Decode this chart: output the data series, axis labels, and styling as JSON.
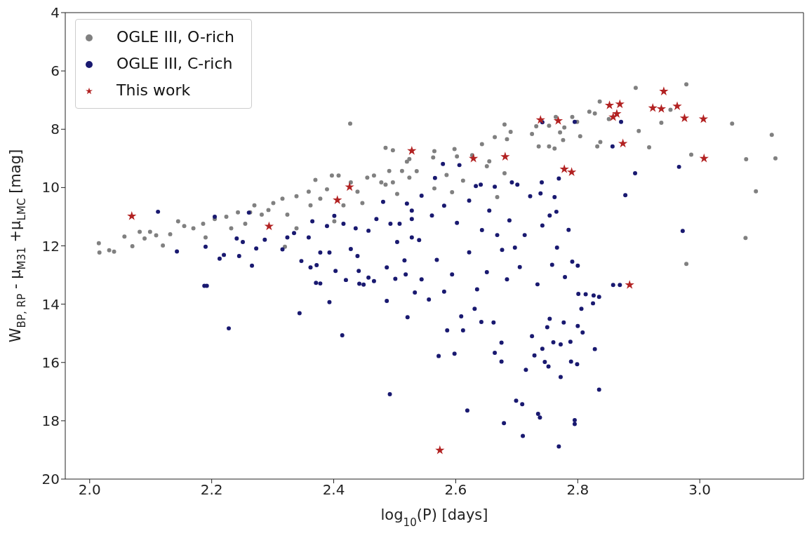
{
  "chart_data": {
    "type": "scatter",
    "xlabel": "log$_{10}$(P) [days]",
    "ylabel": "W$_{BP, RP}$ - μ$_{M31}$ +μ$_{LMC}$ [mag]",
    "xlim": [
      1.96,
      3.17
    ],
    "xticks": [
      {
        "value": 2.0,
        "label": "2.0"
      },
      {
        "value": 2.2,
        "label": "2.2"
      },
      {
        "value": 2.4,
        "label": "2.4"
      },
      {
        "value": 2.6,
        "label": "2.6"
      },
      {
        "value": 2.8,
        "label": "2.8"
      },
      {
        "value": 3.0,
        "label": "3.0"
      }
    ],
    "ylim": [
      20,
      4
    ],
    "yticks": [
      4,
      6,
      8,
      10,
      12,
      14,
      16,
      18,
      20
    ],
    "legend": "top left",
    "series": [
      {
        "name": "OGLE III, O-rich",
        "color": "#808080",
        "marker": "circle",
        "x": [
          2.015,
          2.016,
          2.032,
          2.04,
          2.057,
          2.07,
          2.082,
          2.09,
          2.099,
          2.109,
          2.12,
          2.132,
          2.145,
          2.155,
          2.17,
          2.186,
          2.19,
          2.205,
          2.224,
          2.232,
          2.243,
          2.255,
          2.263,
          2.27,
          2.282,
          2.293,
          2.301,
          2.316,
          2.324,
          2.339,
          2.359,
          2.362,
          2.37,
          2.378,
          2.389,
          2.397,
          2.408,
          2.416,
          2.428,
          2.439,
          2.447,
          2.455,
          2.466,
          2.478,
          2.485,
          2.491,
          2.497,
          2.504,
          2.512,
          2.52,
          2.524,
          2.427,
          2.485,
          2.497,
          2.401,
          2.339,
          2.32,
          2.524,
          2.536,
          2.563,
          2.565,
          2.598,
          2.602,
          2.585,
          2.565,
          2.594,
          2.612,
          2.627,
          2.643,
          2.651,
          2.655,
          2.664,
          2.668,
          2.68,
          2.68,
          2.684,
          2.69,
          2.725,
          2.732,
          2.736,
          2.753,
          2.753,
          2.762,
          2.764,
          2.771,
          2.776,
          2.778,
          2.791,
          2.799,
          2.804,
          2.819,
          2.828,
          2.832,
          2.836,
          2.837,
          2.851,
          2.895,
          2.9,
          2.917,
          2.937,
          2.952,
          2.978,
          2.986,
          2.978,
          3.053,
          3.076,
          3.075,
          3.092,
          3.118,
          3.124
        ],
        "values": [
          11.91,
          12.23,
          12.15,
          12.2,
          11.68,
          12.01,
          11.52,
          11.75,
          11.52,
          11.64,
          11.99,
          11.6,
          11.16,
          11.32,
          11.4,
          11.24,
          11.71,
          11.08,
          11.0,
          11.4,
          10.85,
          11.24,
          10.85,
          10.61,
          10.93,
          10.77,
          10.53,
          10.38,
          10.93,
          10.3,
          10.14,
          10.61,
          9.74,
          10.38,
          10.06,
          9.59,
          9.59,
          10.61,
          9.82,
          10.14,
          10.53,
          9.66,
          9.59,
          9.82,
          9.9,
          9.43,
          9.82,
          10.22,
          9.43,
          9.11,
          9.66,
          7.81,
          8.64,
          8.72,
          11.16,
          11.4,
          12.03,
          9.02,
          9.44,
          8.97,
          8.75,
          8.68,
          8.93,
          9.57,
          10.03,
          10.16,
          9.76,
          8.89,
          8.51,
          9.27,
          9.1,
          8.27,
          10.33,
          7.84,
          9.51,
          8.34,
          8.09,
          8.16,
          7.9,
          8.59,
          7.88,
          8.59,
          8.66,
          7.58,
          8.11,
          8.37,
          7.94,
          7.58,
          7.75,
          8.24,
          7.4,
          7.46,
          8.59,
          7.05,
          8.44,
          7.65,
          6.58,
          8.06,
          8.62,
          7.78,
          7.33,
          6.46,
          8.87,
          12.62,
          7.81,
          9.03,
          11.73,
          10.13,
          8.19,
          9.0
        ]
      },
      {
        "name": "OGLE III, C-rich",
        "color": "#191970",
        "marker": "circle",
        "x": [
          2.112,
          2.143,
          2.192,
          2.19,
          2.205,
          2.213,
          2.22,
          2.241,
          2.245,
          2.251,
          2.261,
          2.266,
          2.273,
          2.287,
          2.316,
          2.324,
          2.335,
          2.347,
          2.359,
          2.362,
          2.365,
          2.372,
          2.378,
          2.378,
          2.389,
          2.393,
          2.403,
          2.401,
          2.416,
          2.42,
          2.428,
          2.436,
          2.439,
          2.441,
          2.449,
          2.457,
          2.457,
          2.466,
          2.47,
          2.481,
          2.487,
          2.493,
          2.501,
          2.504,
          2.508,
          2.516,
          2.518,
          2.52,
          2.528,
          2.528,
          2.188,
          2.228,
          2.344,
          2.393,
          2.414,
          2.371,
          2.442,
          2.487,
          2.492,
          2.521,
          2.533,
          2.556,
          2.572,
          2.586,
          2.598,
          2.609,
          2.612,
          2.619,
          2.631,
          2.642,
          2.662,
          2.664,
          2.675,
          2.675,
          2.679,
          2.699,
          2.709,
          2.71,
          2.715,
          2.725,
          2.729,
          2.735,
          2.738,
          2.746,
          2.752,
          2.742,
          2.75,
          2.76,
          2.769,
          2.772,
          2.772,
          2.788,
          2.789,
          2.795,
          2.795,
          2.799,
          2.8,
          2.808,
          2.801,
          2.806,
          2.825,
          2.828,
          2.835,
          2.835,
          2.858,
          2.777,
          2.754,
          2.579,
          2.606,
          2.566,
          2.633,
          2.641,
          2.664,
          2.692,
          2.701,
          2.741,
          2.742,
          2.795,
          2.871,
          2.857,
          2.769,
          2.739,
          2.722,
          2.762,
          2.765,
          2.754,
          2.785,
          2.791,
          2.8,
          2.894,
          2.878,
          2.966,
          2.972,
          2.869,
          2.813,
          2.826,
          2.779,
          2.766,
          2.742,
          2.713,
          2.688,
          2.676,
          2.655,
          2.643,
          2.622,
          2.602,
          2.581,
          2.561,
          2.544,
          2.528,
          2.54,
          2.569,
          2.594,
          2.622,
          2.651,
          2.684,
          2.705,
          2.734,
          2.758,
          2.635,
          2.581,
          2.544,
          2.668,
          2.697
        ],
        "values": [
          10.83,
          12.19,
          13.37,
          12.03,
          11.0,
          12.44,
          12.31,
          11.75,
          12.35,
          11.87,
          10.86,
          12.68,
          12.09,
          11.79,
          12.12,
          11.71,
          11.56,
          12.52,
          11.71,
          12.74,
          11.16,
          12.66,
          12.23,
          13.29,
          11.32,
          12.23,
          12.86,
          10.97,
          11.24,
          13.17,
          12.11,
          11.4,
          12.35,
          12.86,
          13.33,
          13.09,
          11.48,
          13.21,
          11.08,
          10.49,
          12.74,
          11.24,
          13.13,
          11.87,
          11.24,
          12.5,
          12.98,
          10.55,
          11.08,
          11.71,
          13.37,
          14.83,
          14.31,
          13.93,
          15.07,
          13.27,
          13.3,
          13.89,
          17.09,
          14.45,
          13.6,
          13.84,
          15.78,
          14.9,
          15.7,
          14.42,
          14.9,
          17.65,
          14.16,
          14.61,
          14.63,
          15.67,
          15.32,
          15.97,
          18.08,
          17.31,
          17.43,
          18.52,
          16.25,
          15.1,
          15.76,
          17.76,
          17.89,
          15.98,
          16.14,
          15.53,
          14.79,
          15.31,
          18.88,
          16.5,
          15.38,
          15.29,
          15.97,
          17.98,
          18.11,
          16.06,
          14.75,
          14.97,
          13.65,
          14.16,
          13.97,
          15.54,
          16.93,
          13.75,
          13.34,
          14.63,
          14.5,
          9.19,
          9.23,
          9.67,
          9.95,
          9.9,
          9.97,
          9.82,
          9.9,
          9.82,
          7.76,
          7.75,
          7.75,
          8.59,
          9.69,
          10.2,
          10.3,
          10.33,
          10.83,
          10.96,
          11.45,
          12.54,
          12.68,
          9.51,
          10.26,
          9.29,
          11.49,
          13.34,
          13.66,
          13.7,
          13.07,
          12.06,
          11.3,
          11.63,
          11.13,
          12.14,
          10.79,
          11.46,
          10.45,
          11.21,
          10.62,
          10.96,
          10.28,
          10.79,
          11.8,
          12.48,
          12.98,
          12.22,
          12.9,
          13.15,
          12.73,
          13.32,
          12.65,
          13.49,
          13.57,
          13.15,
          11.63,
          12.06
        ]
      },
      {
        "name": "This work",
        "color": "#b22222",
        "marker": "star",
        "x": [
          2.069,
          2.294,
          2.406,
          2.426,
          2.528,
          2.629,
          2.681,
          2.739,
          2.768,
          2.778,
          2.79,
          2.852,
          2.869,
          2.864,
          2.858,
          2.874,
          2.885,
          2.923,
          2.937,
          2.941,
          2.963,
          2.975,
          3.006,
          3.007,
          2.574
        ],
        "values": [
          10.98,
          11.33,
          10.43,
          9.98,
          8.74,
          9.0,
          8.94,
          7.68,
          7.71,
          9.37,
          9.47,
          7.18,
          7.14,
          7.47,
          7.58,
          8.49,
          13.34,
          7.27,
          7.3,
          6.7,
          7.21,
          7.62,
          7.65,
          9.0,
          19.01
        ]
      }
    ]
  }
}
